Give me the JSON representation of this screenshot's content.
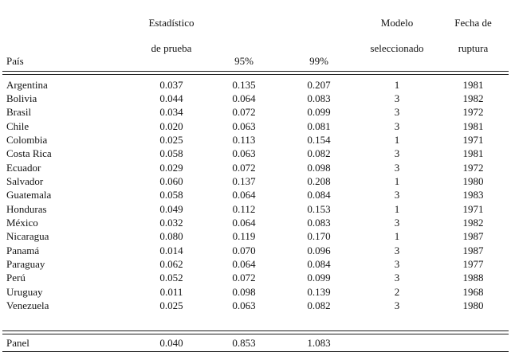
{
  "table": {
    "headers": {
      "pais": "País",
      "estadistico_line1": "Estadístico",
      "estadistico_line2": "de prueba",
      "p95": "95%",
      "p99": "99%",
      "modelo_line1": "Modelo",
      "modelo_line2": "seleccionado",
      "fecha_line1": "Fecha de",
      "fecha_line2": "ruptura"
    },
    "rows": [
      {
        "pais": "Argentina",
        "estadistico": "0.037",
        "p95": "0.135",
        "p99": "0.207",
        "modelo": "1",
        "fecha": "1981"
      },
      {
        "pais": "Bolivia",
        "estadistico": "0.044",
        "p95": "0.064",
        "p99": "0.083",
        "modelo": "3",
        "fecha": "1982"
      },
      {
        "pais": "Brasil",
        "estadistico": "0.034",
        "p95": "0.072",
        "p99": "0.099",
        "modelo": "3",
        "fecha": "1972"
      },
      {
        "pais": "Chile",
        "estadistico": "0.020",
        "p95": "0.063",
        "p99": "0.081",
        "modelo": "3",
        "fecha": "1981"
      },
      {
        "pais": "Colombia",
        "estadistico": "0.025",
        "p95": "0.113",
        "p99": "0.154",
        "modelo": "1",
        "fecha": "1971"
      },
      {
        "pais": "Costa Rica",
        "estadistico": "0.058",
        "p95": "0.063",
        "p99": "0.082",
        "modelo": "3",
        "fecha": "1981"
      },
      {
        "pais": "Ecuador",
        "estadistico": "0.029",
        "p95": "0.072",
        "p99": "0.098",
        "modelo": "3",
        "fecha": "1972"
      },
      {
        "pais": "Salvador",
        "estadistico": "0.060",
        "p95": "0.137",
        "p99": "0.208",
        "modelo": "1",
        "fecha": "1980"
      },
      {
        "pais": "Guatemala",
        "estadistico": "0.058",
        "p95": "0.064",
        "p99": "0.084",
        "modelo": "3",
        "fecha": "1983"
      },
      {
        "pais": "Honduras",
        "estadistico": "0.049",
        "p95": "0.112",
        "p99": "0.153",
        "modelo": "1",
        "fecha": "1971"
      },
      {
        "pais": "México",
        "estadistico": "0.032",
        "p95": "0.064",
        "p99": "0.083",
        "modelo": "3",
        "fecha": "1982"
      },
      {
        "pais": "Nicaragua",
        "estadistico": "0.080",
        "p95": "0.119",
        "p99": "0.170",
        "modelo": "1",
        "fecha": "1987"
      },
      {
        "pais": "Panamá",
        "estadistico": "0.014",
        "p95": "0.070",
        "p99": "0.096",
        "modelo": "3",
        "fecha": "1987"
      },
      {
        "pais": "Paraguay",
        "estadistico": "0.062",
        "p95": "0.064",
        "p99": "0.084",
        "modelo": "3",
        "fecha": "1977"
      },
      {
        "pais": "Perú",
        "estadistico": "0.052",
        "p95": "0.072",
        "p99": "0.099",
        "modelo": "3",
        "fecha": "1988"
      },
      {
        "pais": "Uruguay",
        "estadistico": "0.011",
        "p95": "0.098",
        "p99": "0.139",
        "modelo": "2",
        "fecha": "1968"
      },
      {
        "pais": "Venezuela",
        "estadistico": "0.025",
        "p95": "0.063",
        "p99": "0.082",
        "modelo": "3",
        "fecha": "1980"
      }
    ],
    "panel": {
      "pais": "Panel",
      "estadistico": "0.040",
      "p95": "0.853",
      "p99": "1.083",
      "modelo": "",
      "fecha": ""
    }
  }
}
